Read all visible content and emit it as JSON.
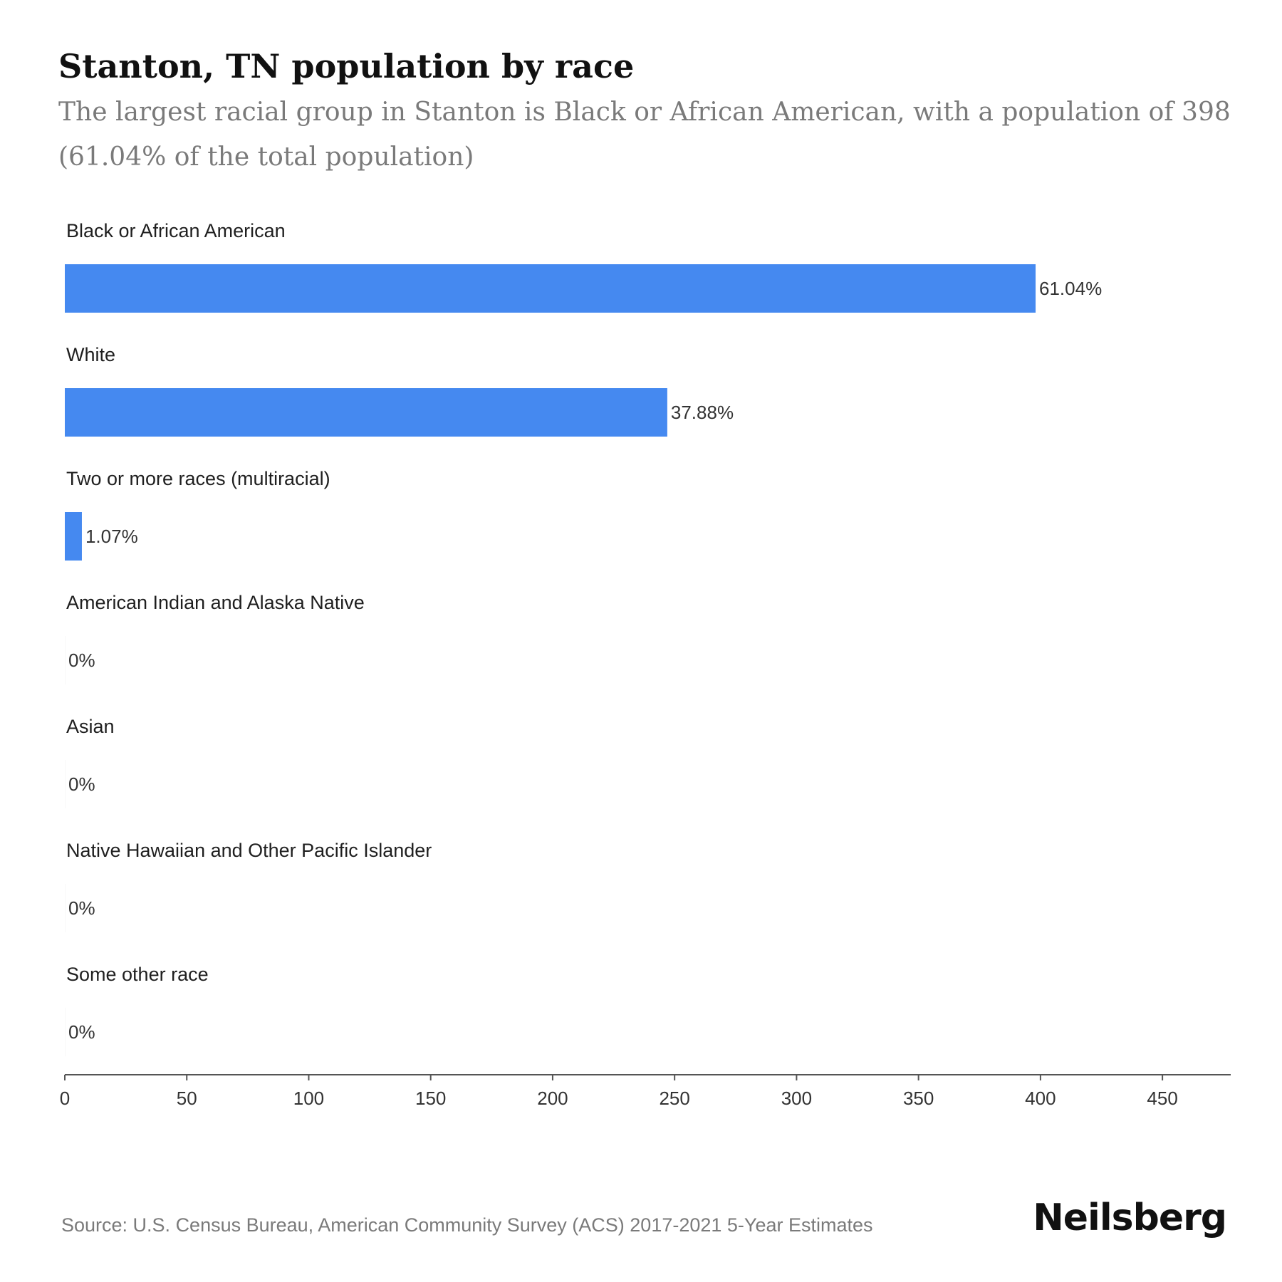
{
  "chart_data": {
    "type": "bar",
    "orientation": "horizontal",
    "title": "Stanton, TN population by race",
    "subtitle": "The largest racial group in Stanton is Black or African American, with a population of 398 (61.04% of the total population)",
    "categories": [
      "Black or African American",
      "White",
      "Two or more races (multiracial)",
      "American Indian and Alaska Native",
      "Asian",
      "Native Hawaiian and Other Pacific Islander",
      "Some other race"
    ],
    "values": [
      398,
      247,
      7,
      0,
      0,
      0,
      0
    ],
    "value_labels": [
      "61.04%",
      "37.88%",
      "1.07%",
      "0%",
      "0%",
      "0%",
      "0%"
    ],
    "xlim": [
      0,
      478
    ],
    "xticks": [
      0,
      50,
      100,
      150,
      200,
      250,
      300,
      350,
      400,
      450
    ],
    "xlabel": "",
    "ylabel": "",
    "grid": false,
    "legend": "none",
    "bar_color": "#4589f0"
  },
  "footer": {
    "source": "Source: U.S. Census Bureau, American Community Survey (ACS) 2017-2021 5-Year Estimates",
    "brand": "Neilsberg"
  }
}
